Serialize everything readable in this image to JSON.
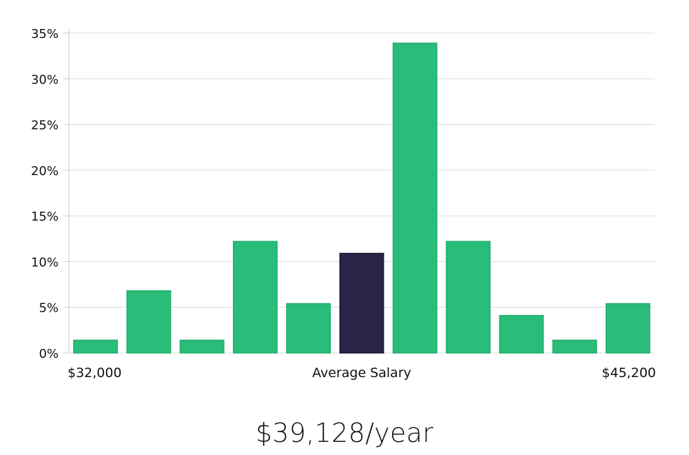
{
  "chart_data": {
    "type": "bar",
    "title": "",
    "xlabel": "Average Salary",
    "ylabel": "",
    "x_min_label": "$32,000",
    "x_max_label": "$45,200",
    "ylim": [
      0,
      35
    ],
    "yticks": [
      0,
      5,
      10,
      15,
      20,
      25,
      30,
      35
    ],
    "ytick_labels": [
      "0%",
      "5%",
      "10%",
      "15%",
      "20%",
      "25%",
      "30%",
      "35%"
    ],
    "values": [
      1.4,
      6.8,
      1.4,
      12.2,
      5.4,
      10.9,
      33.9,
      12.2,
      4.1,
      1.4,
      5.4
    ],
    "highlight_index": 5,
    "grid": true,
    "colors": {
      "bar": "#2abd79",
      "bar_edge": "#22ad6c",
      "highlight": "#282546",
      "grid": "#d9d9d9",
      "axis": "#cccccc"
    }
  },
  "summary": {
    "salary_text": "$39,128/year"
  }
}
